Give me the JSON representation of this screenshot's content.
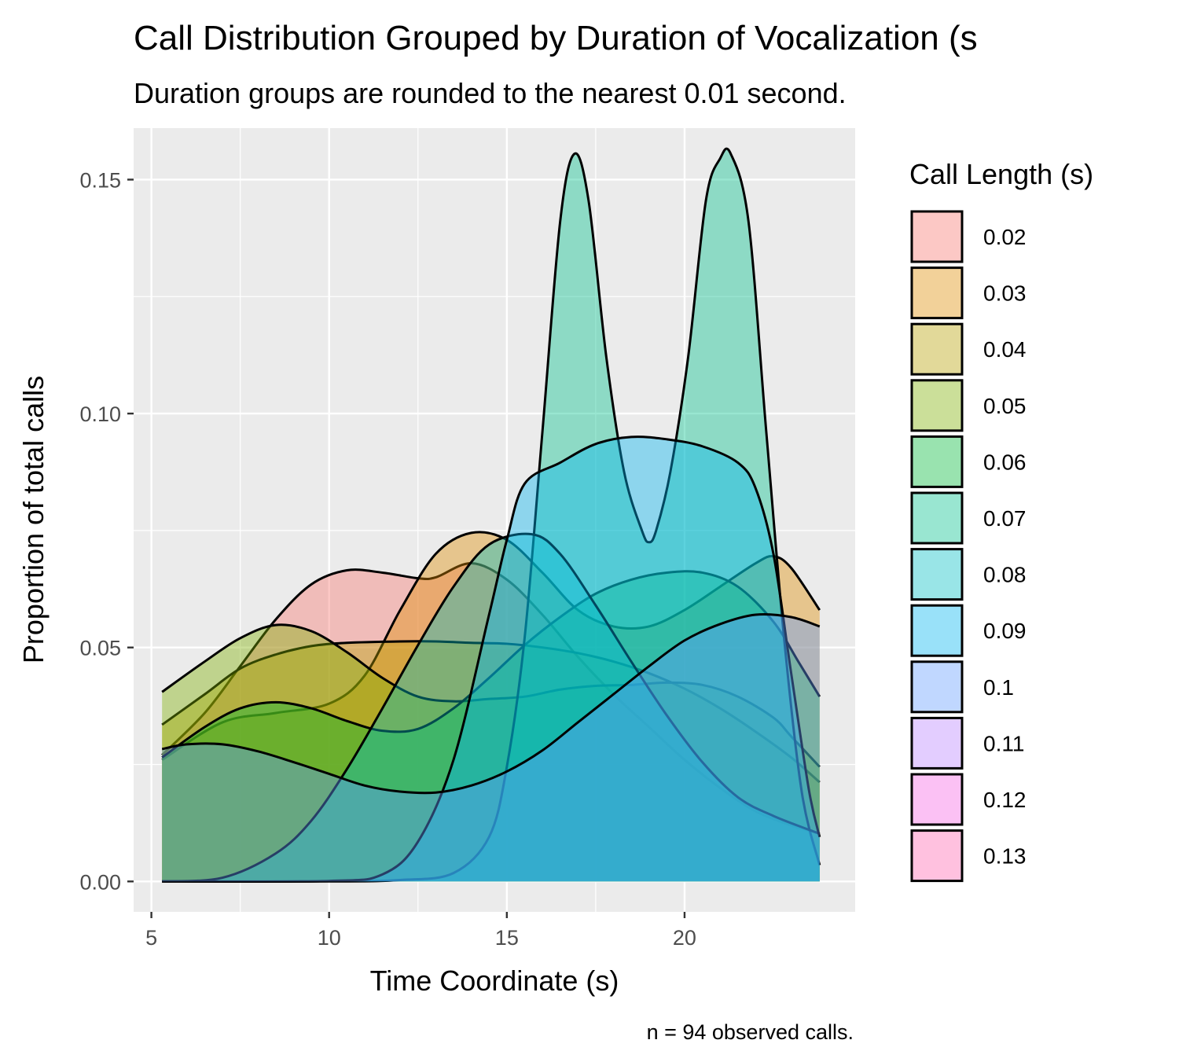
{
  "chart_data": {
    "type": "area",
    "subtype": "density",
    "title": "Call Distribution Grouped by Duration of Vocalization (s",
    "subtitle": "Duration groups are rounded to the nearest 0.01 second.",
    "xlabel": "Time Coordinate (s)",
    "ylabel": "Proportion of total calls",
    "caption": "n = 94 observed calls.",
    "xlim": [
      4.5,
      24.8
    ],
    "ylim": [
      -0.0065,
      0.161
    ],
    "x_ticks": [
      5,
      10,
      15,
      20
    ],
    "x_tick_labels": [
      "5",
      "10",
      "15",
      "20"
    ],
    "y_ticks": [
      0.0,
      0.05,
      0.1,
      0.15
    ],
    "y_tick_labels": [
      "0.00",
      "0.05",
      "0.10",
      "0.15"
    ],
    "grid": true,
    "legend": {
      "title": "Call Length (s)",
      "position": "right",
      "entries": [
        "0.02",
        "0.03",
        "0.04",
        "0.05",
        "0.06",
        "0.07",
        "0.08",
        "0.09",
        "0.1",
        "0.11",
        "0.12",
        "0.13"
      ]
    },
    "series": [
      {
        "name": "0.02",
        "color": "#F8766D",
        "points": [
          [
            5.3,
            0.027
          ],
          [
            6.5,
            0.036
          ],
          [
            7.5,
            0.046
          ],
          [
            8.5,
            0.056
          ],
          [
            9.5,
            0.0635
          ],
          [
            10.5,
            0.0665
          ],
          [
            11.5,
            0.066
          ],
          [
            12.5,
            0.0648
          ],
          [
            13.0,
            0.065
          ],
          [
            14.0,
            0.068
          ],
          [
            15.0,
            0.0645
          ],
          [
            16.0,
            0.057
          ],
          [
            17.0,
            0.048
          ],
          [
            18.0,
            0.04
          ],
          [
            19.0,
            0.033
          ],
          [
            20.0,
            0.026
          ],
          [
            21.0,
            0.02
          ],
          [
            22.0,
            0.015
          ],
          [
            23.0,
            0.012
          ],
          [
            23.8,
            0.0102
          ]
        ]
      },
      {
        "name": "0.03",
        "color": "#DE8C00",
        "points": [
          [
            5.3,
            0.026
          ],
          [
            7.0,
            0.034
          ],
          [
            8.5,
            0.036
          ],
          [
            10.0,
            0.038
          ],
          [
            11.0,
            0.044
          ],
          [
            12.0,
            0.058
          ],
          [
            13.0,
            0.07
          ],
          [
            14.0,
            0.0745
          ],
          [
            15.0,
            0.073
          ],
          [
            16.0,
            0.066
          ],
          [
            17.0,
            0.058
          ],
          [
            18.0,
            0.0545
          ],
          [
            19.0,
            0.0545
          ],
          [
            20.0,
            0.058
          ],
          [
            21.0,
            0.063
          ],
          [
            22.0,
            0.068
          ],
          [
            22.5,
            0.0695
          ],
          [
            23.0,
            0.067
          ],
          [
            23.8,
            0.058
          ]
        ]
      },
      {
        "name": "0.04",
        "color": "#B79F00",
        "points": [
          [
            5.3,
            0.0335
          ],
          [
            6.5,
            0.04
          ],
          [
            7.5,
            0.0455
          ],
          [
            8.5,
            0.0485
          ],
          [
            9.5,
            0.0503
          ],
          [
            10.5,
            0.051
          ],
          [
            12.0,
            0.0513
          ],
          [
            13.0,
            0.0513
          ],
          [
            14.0,
            0.051
          ],
          [
            15.0,
            0.0508
          ],
          [
            16.0,
            0.05
          ],
          [
            17.0,
            0.0488
          ],
          [
            18.0,
            0.047
          ],
          [
            19.0,
            0.0445
          ],
          [
            20.0,
            0.0412
          ],
          [
            21.0,
            0.037
          ],
          [
            22.0,
            0.032
          ],
          [
            23.0,
            0.0265
          ],
          [
            23.8,
            0.0212
          ]
        ]
      },
      {
        "name": "0.05",
        "color": "#7CAE00",
        "points": [
          [
            5.3,
            0.0405
          ],
          [
            6.5,
            0.047
          ],
          [
            7.5,
            0.052
          ],
          [
            8.5,
            0.0548
          ],
          [
            9.5,
            0.0535
          ],
          [
            10.5,
            0.049
          ],
          [
            11.5,
            0.0435
          ],
          [
            12.5,
            0.0395
          ],
          [
            13.5,
            0.0385
          ],
          [
            14.5,
            0.039
          ],
          [
            15.5,
            0.0395
          ],
          [
            16.5,
            0.041
          ],
          [
            17.5,
            0.0418
          ],
          [
            18.5,
            0.042
          ],
          [
            19.5,
            0.0425
          ],
          [
            20.5,
            0.042
          ],
          [
            21.5,
            0.0395
          ],
          [
            22.5,
            0.035
          ],
          [
            23.0,
            0.031
          ],
          [
            23.8,
            0.0245
          ]
        ]
      },
      {
        "name": "0.06",
        "color": "#00BA38",
        "points": [
          [
            5.3,
            0.0265
          ],
          [
            6.5,
            0.033
          ],
          [
            7.5,
            0.037
          ],
          [
            8.5,
            0.0383
          ],
          [
            9.5,
            0.037
          ],
          [
            10.5,
            0.0343
          ],
          [
            11.5,
            0.0322
          ],
          [
            12.5,
            0.0326
          ],
          [
            13.5,
            0.037
          ],
          [
            14.5,
            0.0435
          ],
          [
            15.5,
            0.0505
          ],
          [
            16.5,
            0.0565
          ],
          [
            17.5,
            0.0615
          ],
          [
            18.5,
            0.0645
          ],
          [
            19.5,
            0.066
          ],
          [
            20.5,
            0.066
          ],
          [
            21.5,
            0.063
          ],
          [
            22.5,
            0.0555
          ],
          [
            23.2,
            0.047
          ],
          [
            23.8,
            0.0395
          ]
        ]
      },
      {
        "name": "0.07",
        "color": "#00C08B",
        "points": [
          [
            5.3,
            0.0
          ],
          [
            10.0,
            0.0
          ],
          [
            12.0,
            0.0003
          ],
          [
            13.5,
            0.0018
          ],
          [
            14.5,
            0.0095
          ],
          [
            15.0,
            0.0245
          ],
          [
            15.5,
            0.052
          ],
          [
            16.0,
            0.096
          ],
          [
            16.5,
            0.141
          ],
          [
            16.9,
            0.1555
          ],
          [
            17.3,
            0.1455
          ],
          [
            17.8,
            0.112
          ],
          [
            18.3,
            0.0875
          ],
          [
            18.8,
            0.075
          ],
          [
            19.0,
            0.0725
          ],
          [
            19.2,
            0.075
          ],
          [
            19.6,
            0.0875
          ],
          [
            20.1,
            0.112
          ],
          [
            20.6,
            0.1455
          ],
          [
            21.0,
            0.1545
          ],
          [
            21.3,
            0.1555
          ],
          [
            21.8,
            0.141
          ],
          [
            22.3,
            0.096
          ],
          [
            22.8,
            0.052
          ],
          [
            23.3,
            0.019
          ],
          [
            23.8,
            0.0035
          ]
        ]
      },
      {
        "name": "0.08",
        "color": "#00BFC4",
        "points": [
          [
            5.3,
            0.0
          ],
          [
            7.0,
            0.0008
          ],
          [
            8.5,
            0.006
          ],
          [
            9.5,
            0.013
          ],
          [
            10.5,
            0.024
          ],
          [
            11.5,
            0.037
          ],
          [
            12.5,
            0.0505
          ],
          [
            13.5,
            0.063
          ],
          [
            14.5,
            0.072
          ],
          [
            15.7,
            0.0742
          ],
          [
            16.5,
            0.07
          ],
          [
            17.5,
            0.059
          ],
          [
            18.5,
            0.047
          ],
          [
            19.5,
            0.0355
          ],
          [
            20.5,
            0.0255
          ],
          [
            21.5,
            0.018
          ],
          [
            22.5,
            0.014
          ],
          [
            23.8,
            0.0102
          ]
        ]
      },
      {
        "name": "0.09",
        "color": "#00B4F0",
        "points": [
          [
            5.3,
            0.0
          ],
          [
            10.0,
            0.0001
          ],
          [
            11.5,
            0.0015
          ],
          [
            12.5,
            0.0085
          ],
          [
            13.5,
            0.026
          ],
          [
            14.5,
            0.057
          ],
          [
            15.0,
            0.073
          ],
          [
            15.5,
            0.085
          ],
          [
            16.5,
            0.0895
          ],
          [
            17.5,
            0.0935
          ],
          [
            18.5,
            0.095
          ],
          [
            19.5,
            0.0945
          ],
          [
            20.5,
            0.093
          ],
          [
            21.5,
            0.0895
          ],
          [
            22.0,
            0.084
          ],
          [
            22.5,
            0.07
          ],
          [
            23.0,
            0.0445
          ],
          [
            23.5,
            0.0195
          ],
          [
            23.8,
            0.0095
          ]
        ]
      },
      {
        "name": "0.1",
        "color": "#619CFF",
        "points": [
          [
            5.3,
            0.0283
          ],
          [
            6.0,
            0.0293
          ],
          [
            7.0,
            0.0293
          ],
          [
            8.0,
            0.0278
          ],
          [
            9.0,
            0.0255
          ],
          [
            10.0,
            0.023
          ],
          [
            11.0,
            0.0205
          ],
          [
            12.0,
            0.0192
          ],
          [
            13.0,
            0.019
          ],
          [
            14.0,
            0.0205
          ],
          [
            15.0,
            0.0235
          ],
          [
            16.0,
            0.028
          ],
          [
            17.0,
            0.034
          ],
          [
            18.0,
            0.04
          ],
          [
            19.0,
            0.046
          ],
          [
            20.0,
            0.0515
          ],
          [
            21.0,
            0.055
          ],
          [
            22.0,
            0.057
          ],
          [
            23.0,
            0.0565
          ],
          [
            23.8,
            0.0545
          ]
        ]
      },
      {
        "name": "0.11",
        "color": "#B983FF",
        "points": []
      },
      {
        "name": "0.12",
        "color": "#F564E3",
        "points": []
      },
      {
        "name": "0.13",
        "color": "#FF64B0",
        "points": []
      }
    ]
  }
}
